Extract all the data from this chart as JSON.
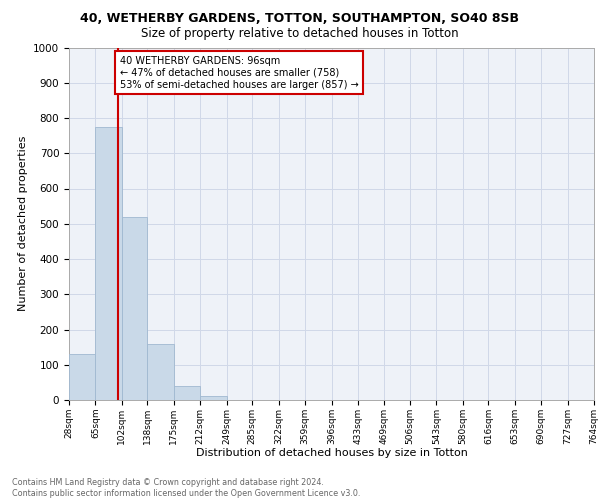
{
  "title_line1": "40, WETHERBY GARDENS, TOTTON, SOUTHAMPTON, SO40 8SB",
  "title_line2": "Size of property relative to detached houses in Totton",
  "xlabel": "Distribution of detached houses by size in Totton",
  "ylabel": "Number of detached properties",
  "bar_values": [
    130,
    775,
    520,
    160,
    40,
    12,
    0,
    0,
    0,
    0,
    0,
    0,
    0,
    0,
    0,
    0,
    0,
    0,
    0,
    0
  ],
  "bin_edges": [
    28,
    65,
    102,
    138,
    175,
    212,
    249,
    285,
    322,
    359,
    396,
    433,
    469,
    506,
    543,
    580,
    616,
    653,
    690,
    727,
    764
  ],
  "x_tick_labels": [
    "28sqm",
    "65sqm",
    "102sqm",
    "138sqm",
    "175sqm",
    "212sqm",
    "249sqm",
    "285sqm",
    "322sqm",
    "359sqm",
    "396sqm",
    "433sqm",
    "469sqm",
    "506sqm",
    "543sqm",
    "580sqm",
    "616sqm",
    "653sqm",
    "690sqm",
    "727sqm",
    "764sqm"
  ],
  "ylim": [
    0,
    1000
  ],
  "bar_color": "#c9d9e8",
  "bar_edgecolor": "#a0b8d0",
  "grid_color": "#d0d8e8",
  "bg_color": "#eef2f8",
  "property_line_x": 96,
  "property_line_color": "#cc0000",
  "annotation_text": "40 WETHERBY GARDENS: 96sqm\n← 47% of detached houses are smaller (758)\n53% of semi-detached houses are larger (857) →",
  "annotation_box_color": "#cc0000",
  "footer_text": "Contains HM Land Registry data © Crown copyright and database right 2024.\nContains public sector information licensed under the Open Government Licence v3.0.",
  "title_fontsize": 9,
  "subtitle_fontsize": 8.5,
  "tick_fontsize": 6.5,
  "ylabel_fontsize": 8,
  "xlabel_fontsize": 8,
  "annotation_fontsize": 7,
  "footer_fontsize": 5.8
}
